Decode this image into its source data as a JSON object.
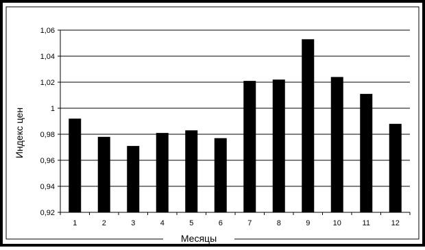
{
  "chart_data": {
    "type": "bar",
    "categories": [
      "1",
      "2",
      "3",
      "4",
      "5",
      "6",
      "7",
      "8",
      "9",
      "10",
      "11",
      "12"
    ],
    "values": [
      0.992,
      0.978,
      0.971,
      0.981,
      0.983,
      0.977,
      1.021,
      1.022,
      1.053,
      1.024,
      1.011,
      0.988
    ],
    "title": "",
    "xlabel": "Месяцы",
    "ylabel": "Индекс цен",
    "ylim": [
      0.92,
      1.06
    ],
    "yticks": [
      "0,92",
      "0,94",
      "0,96",
      "0,98",
      "1",
      "1,02",
      "1,04",
      "1,06"
    ],
    "grid": true,
    "bar_color": "#000000"
  }
}
